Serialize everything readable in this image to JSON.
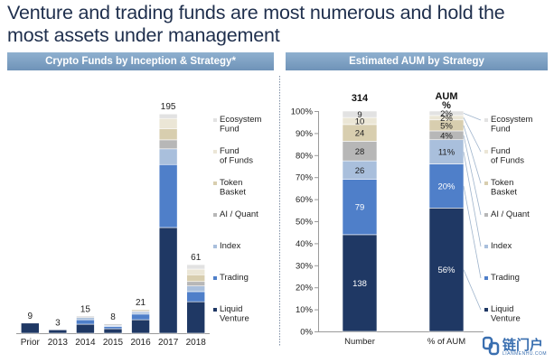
{
  "headline": "Venture and trading funds are most numerous and hold the most assets under management",
  "colors": {
    "liquid_venture": "#1f3864",
    "trading": "#4f7fc9",
    "index": "#a9bfdc",
    "ai_quant": "#b7b7b7",
    "token_basket": "#d8ceaf",
    "fund_of_funds": "#ebe6d6",
    "ecosystem_fund": "#e2e2e2",
    "panel_header": "#7f9fc2"
  },
  "chart_data": [
    {
      "type": "bar",
      "stacked": true,
      "title": "Crypto Funds by Inception & Strategy*",
      "categories": [
        "Prior",
        "2013",
        "2014",
        "2015",
        "2016",
        "2017",
        "2018"
      ],
      "totals": [
        9,
        3,
        15,
        8,
        21,
        195,
        61
      ],
      "series": [
        {
          "name": "Liquid Venture",
          "values": [
            9,
            3,
            8,
            4,
            12,
            94,
            28
          ]
        },
        {
          "name": "Trading",
          "values": [
            0,
            0,
            4,
            2,
            5,
            56,
            9
          ]
        },
        {
          "name": "Index",
          "values": [
            0,
            0,
            2,
            1,
            2,
            14,
            5
          ]
        },
        {
          "name": "AI / Quant",
          "values": [
            0,
            0,
            1,
            1,
            1,
            8,
            4
          ]
        },
        {
          "name": "Token Basket",
          "values": [
            0,
            0,
            0,
            0,
            1,
            10,
            6
          ]
        },
        {
          "name": "Fund of Funds",
          "values": [
            0,
            0,
            0,
            0,
            0,
            9,
            5
          ]
        },
        {
          "name": "Ecosystem Fund",
          "values": [
            0,
            0,
            0,
            0,
            0,
            4,
            4
          ]
        }
      ],
      "ylim": [
        0,
        200
      ],
      "grid": false,
      "legend": "right",
      "legend_labels": [
        "Ecosystem Fund",
        "Fund of Funds",
        "Token Basket",
        "AI / Quant",
        "Index",
        "Trading",
        "Liquid Venture"
      ]
    },
    {
      "type": "bar",
      "stacked": true,
      "percent": true,
      "title": "Estimated AUM by Strategy",
      "categories": [
        "Number",
        "% of AUM"
      ],
      "column_headers": [
        "314",
        "AUM %"
      ],
      "series": [
        {
          "name": "Liquid Venture",
          "values": [
            43.9,
            56
          ],
          "labels": [
            "138",
            "56%"
          ]
        },
        {
          "name": "Trading",
          "values": [
            25.2,
            20
          ],
          "labels": [
            "79",
            "20%"
          ]
        },
        {
          "name": "Index",
          "values": [
            8.3,
            11
          ],
          "labels": [
            "26",
            "11%"
          ]
        },
        {
          "name": "AI / Quant",
          "values": [
            8.9,
            4
          ],
          "labels": [
            "28",
            "4%"
          ]
        },
        {
          "name": "Token Basket",
          "values": [
            7.6,
            5
          ],
          "labels": [
            "24",
            "5%"
          ]
        },
        {
          "name": "Fund of Funds",
          "values": [
            3.2,
            2
          ],
          "labels": [
            "10",
            "2%"
          ]
        },
        {
          "name": "Ecosystem Fund",
          "values": [
            2.9,
            2
          ],
          "labels": [
            "9",
            "2%"
          ]
        }
      ],
      "yticks": [
        "0%",
        "10%",
        "20%",
        "30%",
        "40%",
        "50%",
        "60%",
        "70%",
        "80%",
        "90%",
        "100%"
      ],
      "ylim": [
        0,
        100
      ],
      "grid": false,
      "legend": "right",
      "legend_labels": [
        "Ecosystem Fund",
        "Fund of Funds",
        "Token Basket",
        "AI / Quant",
        "Index",
        "Trading",
        "Liquid Venture"
      ]
    }
  ],
  "watermark": {
    "text": "链门户",
    "sub": "LIANMENHU.COM"
  }
}
